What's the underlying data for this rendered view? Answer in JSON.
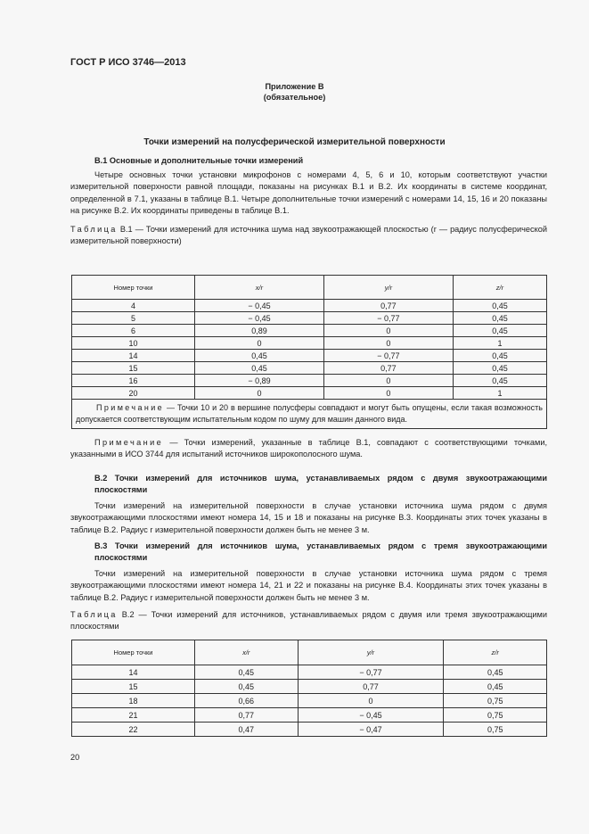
{
  "header": "ГОСТ Р ИСО 3746—2013",
  "appendix": {
    "title": "Приложение В",
    "subtitle": "(обязательное)"
  },
  "main_title": "Точки измерений на полусферической измерительной поверхности",
  "s1": {
    "heading": "В.1 Основные и дополнительные точки измерений",
    "text": "Четыре основных точки установки микрофонов с номерами 4, 5, 6 и 10, которым соответствуют участки измерительной поверхности равной площади, показаны на рисунках В.1 и В.2. Их координаты в системе координат, определенной в 7.1, указаны в таблице В.1. Четыре дополнительные точки измерений с номерами 14, 15, 16 и 20 показаны на рисунке В.2. Их координаты приведены в таблице В.1."
  },
  "table1": {
    "label": "Таблица",
    "caption": "В.1 — Точки измерений для источника шума над звукоотражающей плоскостью (r — радиус полусферической измерительной поверхности)",
    "headers": [
      "Номер точки",
      "x/r",
      "y/r",
      "z/r"
    ],
    "rows": [
      [
        "4",
        "− 0,45",
        "0,77",
        "0,45"
      ],
      [
        "5",
        "− 0,45",
        "− 0,77",
        "0,45"
      ],
      [
        "6",
        "0,89",
        "0",
        "0,45"
      ],
      [
        "10",
        "0",
        "0",
        "1"
      ],
      [
        "14",
        "0,45",
        "− 0,77",
        "0,45"
      ],
      [
        "15",
        "0,45",
        "0,77",
        "0,45"
      ],
      [
        "16",
        "− 0,89",
        "0",
        "0,45"
      ],
      [
        "20",
        "0",
        "0",
        "1"
      ]
    ],
    "note_label": "Примечание",
    "note": " — Точки 10 и 20 в вершине полусферы совпадают и могут быть опущены, если такая возможность допускается соответствующим испытательным кодом по шуму для машин данного вида."
  },
  "note2": {
    "label": "Примечание",
    "text": " — Точки измерений, указанные в таблице В.1, совпадают с соответствующими точками, указанными в ИСО 3744 для испытаний источников широкополосного шума."
  },
  "s2": {
    "heading": "В.2 Точки измерений для источников шума, устанавливаемых рядом с двумя звукоотражающими плоскостями",
    "text": "Точки измерений на измерительной поверхности в случае установки источника шума рядом с двумя звукоотражающими плоскостями имеют номера 14, 15 и 18 и показаны на рисунке В.3. Координаты этих точек указаны в таблице В.2. Радиус r измерительной поверхности должен быть не менее 3 м."
  },
  "s3": {
    "heading": "В.3 Точки измерений для источников шума, устанавливаемых рядом с тремя звукоотражающими плоскостями",
    "text": "Точки измерений на измерительной поверхности в случае установки источника шума рядом с тремя звукоотражающими плоскостями имеют номера 14, 21 и 22 и показаны на рисунке В.4. Координаты этих точек указаны в таблице В.2. Радиус r измерительной поверхности должен быть не менее 3 м."
  },
  "table2": {
    "label": "Таблица",
    "caption": "В.2 — Точки измерений для источников, устанавливаемых рядом с двумя или тремя звукоотражающими плоскостями",
    "headers": [
      "Номер точки",
      "x/r",
      "y/r",
      "z/r"
    ],
    "rows": [
      [
        "14",
        "0,45",
        "− 0,77",
        "0,45"
      ],
      [
        "15",
        "0,45",
        "0,77",
        "0,45"
      ],
      [
        "18",
        "0,66",
        "0",
        "0,75"
      ],
      [
        "21",
        "0,77",
        "− 0,45",
        "0,75"
      ],
      [
        "22",
        "0,47",
        "− 0,47",
        "0,75"
      ]
    ]
  },
  "page_number": "20"
}
